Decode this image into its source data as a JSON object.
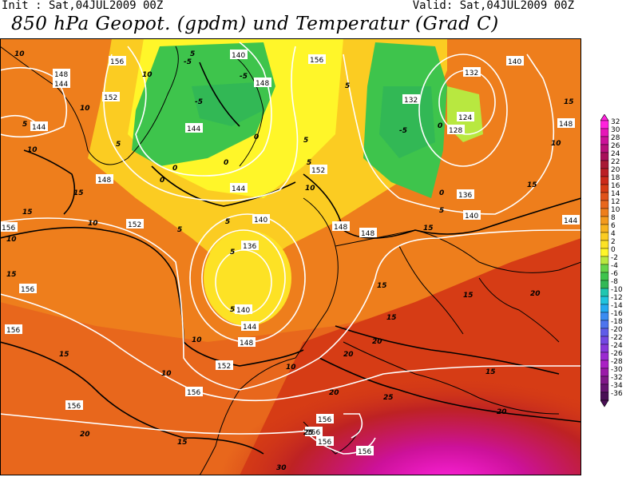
{
  "header": {
    "init": "Init : Sat,04JUL2009 00Z",
    "valid": "Valid: Sat,04JUL2009 00Z",
    "title": "850 hPa Geopot. (gpdm) und Temperatur (Grad C)"
  },
  "map": {
    "geopotential_labels": [
      "148",
      "144",
      "152",
      "144",
      "148",
      "156",
      "140",
      "148",
      "144",
      "156",
      "132",
      "128",
      "124",
      "132",
      "136",
      "140",
      "140",
      "148",
      "144",
      "140",
      "136",
      "140",
      "144",
      "148",
      "152",
      "156",
      "152",
      "148",
      "144",
      "152",
      "148",
      "156",
      "156",
      "156",
      "156",
      "156",
      "156",
      "156",
      "156"
    ],
    "temperature_labels": [
      "10",
      "10",
      "5",
      "10",
      "10",
      "15",
      "15",
      "10",
      "5",
      "0",
      "-5",
      "-5",
      "5",
      "0",
      "-5",
      "0",
      "0",
      "5",
      "5",
      "5",
      "5",
      "5",
      "0",
      "-5",
      "0",
      "5",
      "10",
      "15",
      "15",
      "10",
      "5",
      "5",
      "15",
      "15",
      "15",
      "20",
      "15",
      "20",
      "10",
      "20",
      "15",
      "10",
      "20",
      "10",
      "15",
      "20",
      "25",
      "20",
      "15",
      "30",
      "25",
      "10",
      "15"
    ]
  },
  "legend": {
    "values": [
      "32",
      "30",
      "28",
      "26",
      "24",
      "22",
      "20",
      "18",
      "16",
      "14",
      "12",
      "10",
      "8",
      "6",
      "4",
      "2",
      "0",
      "-2",
      "-4",
      "-6",
      "-8",
      "-10",
      "-12",
      "-14",
      "-16",
      "-18",
      "-20",
      "-22",
      "-24",
      "-26",
      "-28",
      "-30",
      "-32",
      "-34",
      "-36"
    ],
    "colors": [
      "#ff22dd",
      "#e616b8",
      "#cc1199",
      "#b8107a",
      "#a80f5a",
      "#a81a35",
      "#bb1f25",
      "#cc2a1a",
      "#d63c15",
      "#e0521a",
      "#e8671c",
      "#ee7e1c",
      "#f39a1e",
      "#f7b31f",
      "#fbcc22",
      "#fde225",
      "#fff629",
      "#b8e840",
      "#66d44a",
      "#3ec44c",
      "#32b855",
      "#20c6b0",
      "#20c4dd",
      "#24aaf0",
      "#3a8cf2",
      "#4d74ee",
      "#5f5ce8",
      "#7448e2",
      "#8838da",
      "#9a2ad0",
      "#aa20c4",
      "#9a1aa8",
      "#801888",
      "#661470",
      "#4a0f55"
    ]
  }
}
